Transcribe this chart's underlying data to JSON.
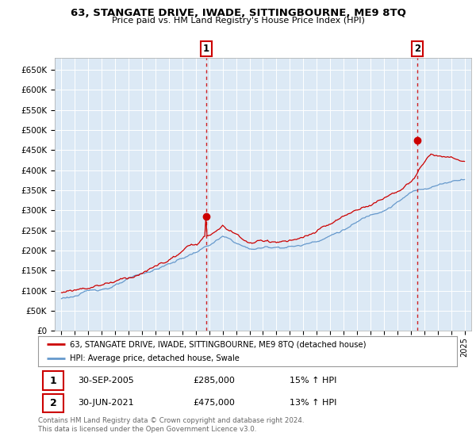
{
  "title": "63, STANGATE DRIVE, IWADE, SITTINGBOURNE, ME9 8TQ",
  "subtitle": "Price paid vs. HM Land Registry's House Price Index (HPI)",
  "legend_line1": "63, STANGATE DRIVE, IWADE, SITTINGBOURNE, ME9 8TQ (detached house)",
  "legend_line2": "HPI: Average price, detached house, Swale",
  "annotation1_date": "30-SEP-2005",
  "annotation1_price": "£285,000",
  "annotation1_hpi": "15% ↑ HPI",
  "annotation2_date": "30-JUN-2021",
  "annotation2_price": "£475,000",
  "annotation2_hpi": "13% ↑ HPI",
  "footer": "Contains HM Land Registry data © Crown copyright and database right 2024.\nThis data is licensed under the Open Government Licence v3.0.",
  "sale1_x": 2005.75,
  "sale1_y": 285000,
  "sale2_x": 2021.5,
  "sale2_y": 475000,
  "xlim": [
    1994.5,
    2025.5
  ],
  "ylim": [
    0,
    680000
  ],
  "yticks": [
    0,
    50000,
    100000,
    150000,
    200000,
    250000,
    300000,
    350000,
    400000,
    450000,
    500000,
    550000,
    600000,
    650000
  ],
  "xticks": [
    1995,
    1996,
    1997,
    1998,
    1999,
    2000,
    2001,
    2002,
    2003,
    2004,
    2005,
    2006,
    2007,
    2008,
    2009,
    2010,
    2011,
    2012,
    2013,
    2014,
    2015,
    2016,
    2017,
    2018,
    2019,
    2020,
    2021,
    2022,
    2023,
    2024,
    2025
  ],
  "red_color": "#cc0000",
  "blue_color": "#6699cc",
  "plot_bg_color": "#dce9f5",
  "bg_color": "#ffffff",
  "grid_color": "#ffffff"
}
